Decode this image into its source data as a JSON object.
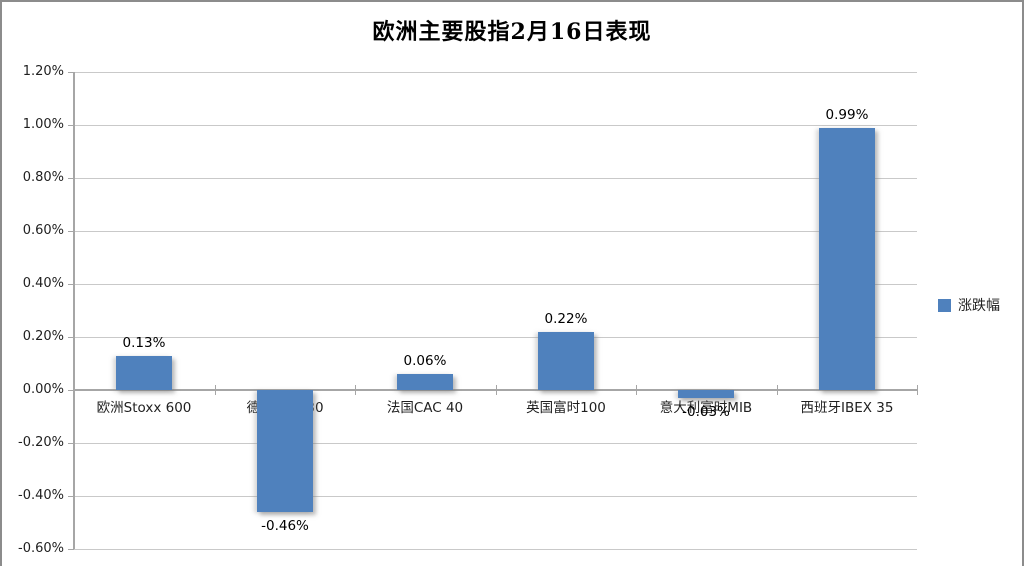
{
  "chart_data": {
    "type": "bar",
    "title": "欧洲主要股指2月16日表现",
    "categories": [
      "欧洲Stoxx 600",
      "德国DAX 30",
      "法国CAC 40",
      "英国富时100",
      "意大利富时MIB",
      "西班牙IBEX 35"
    ],
    "series": [
      {
        "name": "涨跌幅",
        "values": [
          0.13,
          -0.46,
          0.06,
          0.22,
          -0.03,
          0.99
        ]
      }
    ],
    "data_labels": [
      "0.13%",
      "-0.46%",
      "0.06%",
      "0.22%",
      "-0.03%",
      "0.99%"
    ],
    "ylim": [
      -0.6,
      1.2
    ],
    "y_tick_step": 0.2,
    "y_tick_labels": [
      "1.20%",
      "1.00%",
      "0.80%",
      "0.60%",
      "0.40%",
      "0.20%",
      "0.00%",
      "-0.20%",
      "-0.40%",
      "-0.60%"
    ],
    "legend": {
      "label": "涨跌幅",
      "position": "right"
    },
    "grid": true,
    "colors": {
      "bar": "#4F81BD",
      "gridline": "#C9C9C9",
      "axis": "#A6A6A6",
      "text": "#1F1F1F",
      "frame_border": "#8C8C8C",
      "background": "#FFFFFF"
    }
  }
}
